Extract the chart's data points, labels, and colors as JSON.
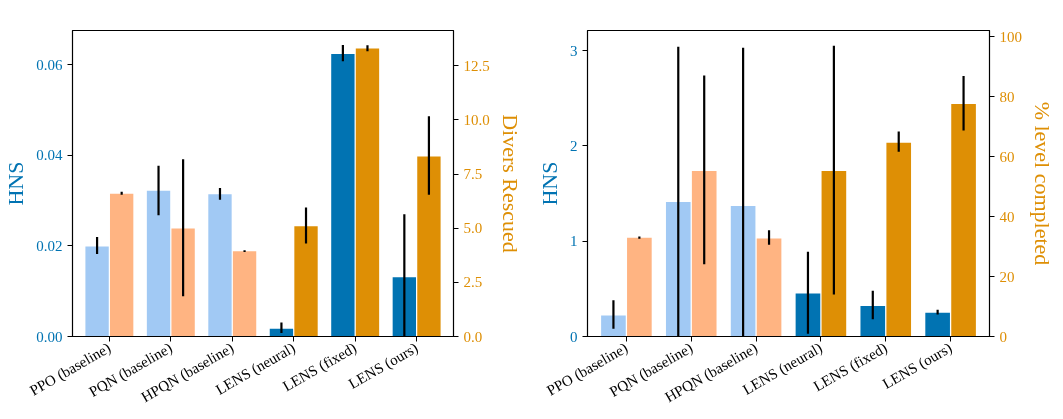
{
  "chart_data": [
    {
      "type": "bar",
      "categories": [
        "PPO (baseline)",
        "PQN (baseline)",
        "HPQN (baseline)",
        "LENS (neural)",
        "LENS (fixed)",
        "LENS (ours)"
      ],
      "ylabel": "HNS",
      "y2label": "Divers Rescued",
      "ylim": [
        0,
        0.0676
      ],
      "yticks": [
        {
          "value": 0,
          "label": "0.00"
        },
        {
          "value": 0.02,
          "label": "0.02"
        },
        {
          "value": 0.04,
          "label": "0.04"
        },
        {
          "value": 0.06,
          "label": "0.06"
        }
      ],
      "y2lim": [
        0,
        14.13
      ],
      "y2ticks": [
        {
          "value": 0,
          "label": "0.0"
        },
        2.5,
        {
          "value": 5,
          "label": "5.0"
        },
        7.5,
        {
          "value": 10,
          "label": "10.0"
        },
        12.5
      ],
      "grid": false,
      "series": [
        {
          "axis": "y",
          "colors": [
            "#a1c9f4",
            "#a1c9f4",
            "#a1c9f4",
            "#0173b2",
            "#0173b2",
            "#0173b2"
          ],
          "color": "#0173b2",
          "values": [
            0.0199,
            0.0322,
            0.0314,
            0.0017,
            0.0624,
            0.0131
          ],
          "errors": [
            [
              0.0182,
              0.022
            ],
            [
              0.0268,
              0.0377
            ],
            [
              0.0302,
              0.0328
            ],
            [
              0.0008,
              0.0031
            ],
            [
              0.0608,
              0.0644
            ],
            [
              0,
              0.027
            ]
          ]
        },
        {
          "axis": "y2",
          "colors": [
            "#ffb482",
            "#ffb482",
            "#ffb482",
            "#de8f05",
            "#de8f05",
            "#de8f05"
          ],
          "color": "#de8f05",
          "values": [
            6.59,
            4.99,
            3.94,
            5.09,
            13.3,
            8.31
          ],
          "errors": [
            [
              6.55,
              6.68
            ],
            [
              1.86,
              8.19
            ],
            [
              3.9,
              3.98
            ],
            [
              4.3,
              5.96
            ],
            [
              13.17,
              13.45
            ],
            [
              6.54,
              10.17
            ]
          ]
        }
      ]
    },
    {
      "type": "bar",
      "categories": [
        "PPO (baseline)",
        "PQN (baseline)",
        "HPQN (baseline)",
        "LENS (neural)",
        "LENS (fixed)",
        "LENS (ours)"
      ],
      "ylabel": "HNS",
      "y2label": "% level completed",
      "ylim": [
        0,
        3.21
      ],
      "yticks": [
        0,
        1,
        2,
        3
      ],
      "y2lim": [
        0,
        102
      ],
      "y2ticks": [
        0,
        20,
        40,
        60,
        80,
        100
      ],
      "grid": false,
      "series": [
        {
          "axis": "y",
          "colors": [
            "#a1c9f4",
            "#a1c9f4",
            "#a1c9f4",
            "#0173b2",
            "#0173b2",
            "#0173b2"
          ],
          "color": "#0173b2",
          "values": [
            0.22,
            1.41,
            1.37,
            0.45,
            0.32,
            0.25
          ],
          "errors": [
            [
              0.08,
              0.38
            ],
            [
              0,
              3.04
            ],
            [
              0,
              3.03
            ],
            [
              0.03,
              0.89
            ],
            [
              0.18,
              0.48
            ],
            [
              0.23,
              0.28
            ]
          ]
        },
        {
          "axis": "y2",
          "colors": [
            "#ffb482",
            "#ffb482",
            "#ffb482",
            "#de8f05",
            "#de8f05",
            "#de8f05"
          ],
          "color": "#de8f05",
          "values": [
            32.9,
            55.2,
            32.7,
            55.2,
            64.6,
            77.5
          ],
          "errors": [
            [
              32.6,
              33.3
            ],
            [
              24.1,
              87.0
            ],
            [
              30.6,
              35.4
            ],
            [
              14.0,
              96.9
            ],
            [
              61.6,
              68.3
            ],
            [
              68.7,
              86.8
            ]
          ]
        }
      ]
    }
  ]
}
